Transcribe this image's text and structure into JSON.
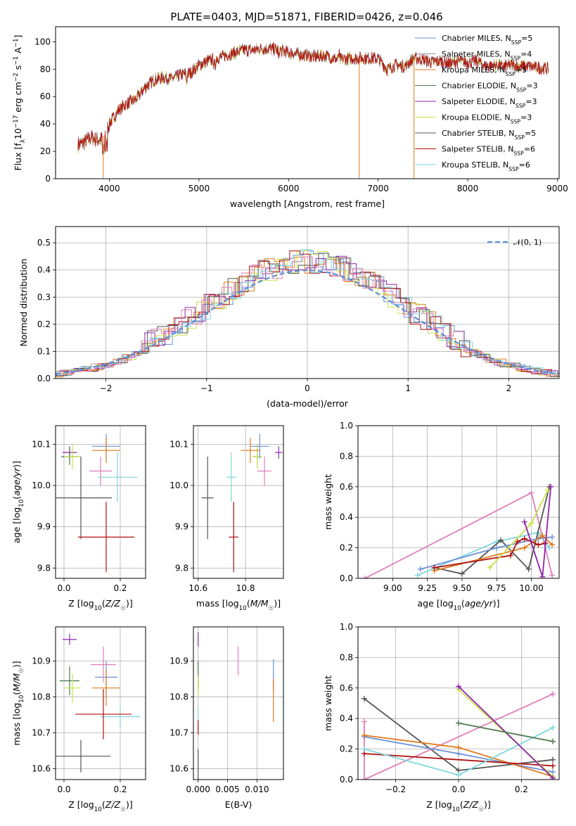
{
  "figure_title": "PLATE=0403, MJD=51871, FIBERID=0426, z=0.046",
  "colors": {
    "chabrier_miles": "#6b8fd6",
    "salpeter_miles": "#9d9d9d",
    "kroupa_miles": "#e07b1c",
    "chabrier_elodie": "#4d7a4d",
    "salpeter_elodie": "#8e24aa",
    "kroupa_elodie": "#c9e04a",
    "chabrier_stelib": "#555555",
    "salpeter_stelib": "#b01010",
    "kroupa_stelib": "#7fd6dc",
    "gauss": "#5b8fd6",
    "pink": "#e07fb8"
  },
  "chart_data": [
    {
      "id": "spectrum",
      "type": "line",
      "xlabel": "wavelength [Angstrom, rest frame]",
      "ylabel": "Flux [f_λ 10^-17 erg cm^-2 s^-1 A^-1]",
      "xlim": [
        3400,
        9020
      ],
      "ylim": [
        0,
        111
      ],
      "xticks": [
        4000,
        5000,
        6000,
        7000,
        8000,
        9000
      ],
      "yticks": [
        0,
        20,
        40,
        60,
        80,
        100
      ],
      "legend_position": "top-right",
      "legend": [
        {
          "name": "Chabrier MILES, N",
          "sub": "SSP",
          "val": "=5",
          "color": "#6b8fd6"
        },
        {
          "name": "Salpeter MILES, N",
          "sub": "SSP",
          "val": "=4",
          "color": "#9d9d9d"
        },
        {
          "name": "Kroupa MILES, N",
          "sub": "SSP",
          "val": "=5",
          "color": "#e07b1c"
        },
        {
          "name": "Chabrier ELODIE, N",
          "sub": "SSP",
          "val": "=3",
          "color": "#4d7a4d"
        },
        {
          "name": "Salpeter ELODIE, N",
          "sub": "SSP",
          "val": "=3",
          "color": "#8e24aa"
        },
        {
          "name": "Kroupa ELODIE, N",
          "sub": "SSP",
          "val": "=3",
          "color": "#c9e04a"
        },
        {
          "name": "Chabrier STELIB, N",
          "sub": "SSP",
          "val": "=5",
          "color": "#555555"
        },
        {
          "name": "Salpeter STELIB, N",
          "sub": "SSP",
          "val": "=6",
          "color": "#b01010"
        },
        {
          "name": "Kroupa STELIB, N",
          "sub": "SSP",
          "val": "=6",
          "color": "#7fd6dc"
        }
      ],
      "continuum": [
        [
          3650,
          25
        ],
        [
          3700,
          26
        ],
        [
          3800,
          30
        ],
        [
          3900,
          28
        ],
        [
          3950,
          33
        ],
        [
          4000,
          40
        ],
        [
          4100,
          50
        ],
        [
          4200,
          55
        ],
        [
          4300,
          58
        ],
        [
          4400,
          67
        ],
        [
          4500,
          72
        ],
        [
          4600,
          74
        ],
        [
          4700,
          73
        ],
        [
          4800,
          76
        ],
        [
          4900,
          77
        ],
        [
          5000,
          83
        ],
        [
          5100,
          86
        ],
        [
          5200,
          88
        ],
        [
          5300,
          90
        ],
        [
          5400,
          92
        ],
        [
          5500,
          94
        ],
        [
          5600,
          94
        ],
        [
          5700,
          95
        ],
        [
          5800,
          95
        ],
        [
          5900,
          94
        ],
        [
          6000,
          92
        ],
        [
          6100,
          91
        ],
        [
          6200,
          90
        ],
        [
          6300,
          89
        ],
        [
          6400,
          90
        ],
        [
          6500,
          88
        ],
        [
          6600,
          87
        ],
        [
          6700,
          88
        ],
        [
          6800,
          88
        ],
        [
          6900,
          88
        ],
        [
          7000,
          88
        ],
        [
          7100,
          80
        ],
        [
          7200,
          83
        ],
        [
          7300,
          82
        ],
        [
          7400,
          88
        ],
        [
          7500,
          87
        ],
        [
          7600,
          85
        ],
        [
          7700,
          86
        ],
        [
          7800,
          84
        ],
        [
          7900,
          86
        ],
        [
          8000,
          85
        ],
        [
          8100,
          86
        ],
        [
          8200,
          82
        ],
        [
          8300,
          83
        ],
        [
          8400,
          82
        ],
        [
          8500,
          83
        ],
        [
          8600,
          82
        ],
        [
          8700,
          82
        ],
        [
          8800,
          81
        ],
        [
          8900,
          80
        ]
      ],
      "spikes": [
        {
          "x": 3933,
          "y": 0,
          "color": "#e07b1c"
        },
        {
          "x": 6790,
          "y": 0,
          "color": "#e07b1c"
        },
        {
          "x": 7400,
          "y": 0,
          "color": "#e07b1c"
        }
      ]
    },
    {
      "id": "residual_hist",
      "type": "step",
      "xlabel": "(data-model)/error",
      "ylabel": "Normed distribution",
      "xlim": [
        -2.5,
        2.5
      ],
      "ylim": [
        0,
        0.56
      ],
      "xticks": [
        -2,
        -1,
        0,
        1,
        2
      ],
      "yticks": [
        0.0,
        0.1,
        0.2,
        0.3,
        0.4,
        0.5
      ],
      "legend": "𝒩(0, 1)",
      "legend_position": "top-right",
      "bin_width": 0.1
    },
    {
      "id": "age_vs_Z",
      "type": "errorbar",
      "xlabel": "Z [log10(Z/Z☉)]",
      "ylabel": "age  [log10(age/yr)]",
      "xlim": [
        -0.03,
        0.29
      ],
      "ylim": [
        9.775,
        10.145
      ],
      "xticks": [
        0.0,
        0.2
      ],
      "yticks": [
        9.8,
        9.9,
        10.0,
        10.1
      ],
      "points": [
        {
          "x": 0.02,
          "y": 10.08,
          "xerr": 0.025,
          "yerr": 0.015,
          "color": "#8e24aa"
        },
        {
          "x": 0.02,
          "y": 10.07,
          "xerr": 0.03,
          "yerr": 0.02,
          "color": "#4d7a4d"
        },
        {
          "x": 0.03,
          "y": 10.07,
          "xerr": 0.03,
          "yerr": 0.03,
          "color": "#c9e04a"
        },
        {
          "x": 0.15,
          "y": 10.095,
          "xerr": 0.05,
          "yerr": 0.03,
          "color": "#6b8fd6"
        },
        {
          "x": 0.15,
          "y": 10.085,
          "xerr": 0.05,
          "yerr": 0.03,
          "color": "#e07b1c"
        },
        {
          "x": 0.13,
          "y": 10.035,
          "xerr": 0.04,
          "yerr": 0.035,
          "color": "#e07fb8"
        },
        {
          "x": 0.19,
          "y": 10.02,
          "xerr": 0.07,
          "yerr": 0.06,
          "color": "#7fd6dc"
        },
        {
          "x": 0.06,
          "y": 9.97,
          "xerr": 0.11,
          "yerr": 0.1,
          "color": "#555555"
        },
        {
          "x": 0.15,
          "y": 9.875,
          "xerr": 0.1,
          "yerr": 0.085,
          "color": "#b01010"
        }
      ]
    },
    {
      "id": "age_vs_mass",
      "type": "errorbar",
      "xlabel": "mass [log10(M/M☉)]",
      "ylabel": "",
      "xlim": [
        10.58,
        10.96
      ],
      "ylim": [
        9.775,
        10.145
      ],
      "xticks": [
        10.6,
        10.8
      ],
      "yticks": [
        9.8,
        9.9,
        10.0,
        10.1
      ],
      "points": [
        {
          "x": 10.94,
          "y": 10.08,
          "xerr": 0.015,
          "yerr": 0.015,
          "color": "#8e24aa"
        },
        {
          "x": 10.85,
          "y": 10.07,
          "xerr": 0.02,
          "yerr": 0.02,
          "color": "#4d7a4d"
        },
        {
          "x": 10.85,
          "y": 10.07,
          "xerr": 0.02,
          "yerr": 0.03,
          "color": "#c9e04a"
        },
        {
          "x": 10.86,
          "y": 10.095,
          "xerr": 0.04,
          "yerr": 0.03,
          "color": "#6b8fd6"
        },
        {
          "x": 10.82,
          "y": 10.085,
          "xerr": 0.04,
          "yerr": 0.03,
          "color": "#e07b1c"
        },
        {
          "x": 10.88,
          "y": 10.035,
          "xerr": 0.03,
          "yerr": 0.035,
          "color": "#e07fb8"
        },
        {
          "x": 10.74,
          "y": 10.02,
          "xerr": 0.02,
          "yerr": 0.06,
          "color": "#7fd6dc"
        },
        {
          "x": 10.64,
          "y": 9.97,
          "xerr": 0.025,
          "yerr": 0.1,
          "color": "#555555"
        },
        {
          "x": 10.75,
          "y": 9.875,
          "xerr": 0.02,
          "yerr": 0.085,
          "color": "#b01010"
        }
      ]
    },
    {
      "id": "weight_vs_age",
      "type": "line",
      "xlabel": "age  [log10(age/yr)]",
      "ylabel": "mass weight",
      "xlim": [
        8.75,
        10.2
      ],
      "ylim": [
        0,
        1
      ],
      "xticks": [
        9.0,
        9.25,
        9.5,
        9.75,
        10.0
      ],
      "yticks": [
        0.0,
        0.2,
        0.4,
        0.6,
        0.8,
        1.0
      ],
      "series": [
        {
          "color": "#e07fb8",
          "points": [
            [
              8.8,
              0.0
            ],
            [
              10.0,
              0.56
            ],
            [
              10.15,
              0.02
            ]
          ]
        },
        {
          "color": "#7fd6dc",
          "points": [
            [
              9.18,
              0.02
            ],
            [
              9.75,
              0.24
            ],
            [
              10.05,
              0.3
            ],
            [
              10.13,
              0.2
            ]
          ]
        },
        {
          "color": "#555555",
          "points": [
            [
              9.3,
              0.07
            ],
            [
              9.5,
              0.03
            ],
            [
              9.78,
              0.25
            ],
            [
              9.98,
              0.06
            ],
            [
              10.13,
              0.6
            ]
          ]
        },
        {
          "color": "#6b8fd6",
          "points": [
            [
              9.2,
              0.06
            ],
            [
              9.75,
              0.2
            ],
            [
              10.05,
              0.26
            ],
            [
              10.15,
              0.27
            ]
          ]
        },
        {
          "color": "#e07b1c",
          "points": [
            [
              9.3,
              0.05
            ],
            [
              9.95,
              0.2
            ],
            [
              10.08,
              0.28
            ],
            [
              10.15,
              0.22
            ]
          ]
        },
        {
          "color": "#b01010",
          "points": [
            [
              9.3,
              0.07
            ],
            [
              9.85,
              0.15
            ],
            [
              9.9,
              0.24
            ],
            [
              9.95,
              0.26
            ],
            [
              10.05,
              0.22
            ],
            [
              10.1,
              0.23
            ]
          ]
        },
        {
          "color": "#c9e04a",
          "points": [
            [
              9.7,
              0.07
            ],
            [
              10.0,
              0.36
            ],
            [
              10.12,
              0.58
            ]
          ]
        },
        {
          "color": "#8e24aa",
          "points": [
            [
              9.95,
              0.37
            ],
            [
              10.08,
              0.01
            ],
            [
              10.14,
              0.6
            ]
          ]
        }
      ]
    },
    {
      "id": "mass_vs_Z",
      "type": "errorbar",
      "xlabel": "Z [log10(Z/Z☉)]",
      "ylabel": "mass [log10(M/M☉)]",
      "xlim": [
        -0.03,
        0.29
      ],
      "ylim": [
        10.57,
        10.995
      ],
      "xticks": [
        0.0,
        0.2
      ],
      "yticks": [
        10.6,
        10.7,
        10.8,
        10.9
      ],
      "points": [
        {
          "x": 0.02,
          "y": 10.96,
          "xerr": 0.025,
          "yerr": 0.015,
          "color": "#8e24aa"
        },
        {
          "x": 0.02,
          "y": 10.845,
          "xerr": 0.035,
          "yerr": 0.04,
          "color": "#4d7a4d"
        },
        {
          "x": 0.03,
          "y": 10.825,
          "xerr": 0.03,
          "yerr": 0.04,
          "color": "#c9e04a"
        },
        {
          "x": 0.15,
          "y": 10.855,
          "xerr": 0.04,
          "yerr": 0.045,
          "color": "#6b8fd6"
        },
        {
          "x": 0.15,
          "y": 10.825,
          "xerr": 0.05,
          "yerr": 0.05,
          "color": "#e07b1c"
        },
        {
          "x": 0.14,
          "y": 10.89,
          "xerr": 0.045,
          "yerr": 0.05,
          "color": "#e07fb8"
        },
        {
          "x": 0.2,
          "y": 10.745,
          "xerr": 0.07,
          "yerr": 0.03,
          "color": "#7fd6dc"
        },
        {
          "x": 0.06,
          "y": 10.635,
          "xerr": 0.105,
          "yerr": 0.045,
          "color": "#555555"
        },
        {
          "x": 0.14,
          "y": 10.752,
          "xerr": 0.1,
          "yerr": 0.07,
          "color": "#b01010"
        }
      ]
    },
    {
      "id": "mass_vs_ebv",
      "type": "errorbar",
      "xlabel": "E(B-V)",
      "ylabel": "",
      "xlim": [
        -0.0008,
        0.0145
      ],
      "ylim": [
        10.57,
        10.995
      ],
      "xticks": [
        0.0,
        0.005,
        0.01
      ],
      "xtick_labels": [
        "0.000",
        "0.005",
        "0.010"
      ],
      "yticks": [
        10.6,
        10.7,
        10.8,
        10.9
      ],
      "points": [
        {
          "x": 0.0,
          "y": 10.96,
          "xerr": 0,
          "yerr": 0.02,
          "color": "#8e24aa"
        },
        {
          "x": 0.0,
          "y": 10.86,
          "xerr": 0,
          "yerr": 0.04,
          "color": "#4d7a4d"
        },
        {
          "x": 0.0,
          "y": 10.83,
          "xerr": 0,
          "yerr": 0.03,
          "color": "#c9e04a"
        },
        {
          "x": 0.0,
          "y": 10.74,
          "xerr": 0,
          "yerr": 0.03,
          "color": "#7fd6dc"
        },
        {
          "x": 0.0,
          "y": 10.715,
          "xerr": 0,
          "yerr": 0.02,
          "color": "#b01010"
        },
        {
          "x": 0.0,
          "y": 10.61,
          "xerr": 0,
          "yerr": 0.045,
          "color": "#555555"
        },
        {
          "x": 0.0068,
          "y": 10.9,
          "xerr": 0,
          "yerr": 0.04,
          "color": "#e07fb8"
        },
        {
          "x": 0.0128,
          "y": 10.86,
          "xerr": 0,
          "yerr": 0.045,
          "color": "#6b8fd6"
        },
        {
          "x": 0.0128,
          "y": 10.79,
          "xerr": 0,
          "yerr": 0.06,
          "color": "#e07b1c"
        }
      ]
    },
    {
      "id": "weight_vs_Z",
      "type": "line",
      "xlabel": "Z [log10(Z/Z☉)]",
      "ylabel": "mass weight",
      "xlim": [
        -0.32,
        0.32
      ],
      "ylim": [
        0,
        1
      ],
      "xticks": [
        -0.2,
        0.0,
        0.2
      ],
      "yticks": [
        0.0,
        0.2,
        0.4,
        0.6,
        0.8,
        1.0
      ],
      "series": [
        {
          "color": "#555555",
          "points": [
            [
              -0.3,
              0.53
            ],
            [
              0.0,
              0.06
            ],
            [
              0.3,
              0.13
            ]
          ]
        },
        {
          "color": "#e07fb8",
          "points": [
            [
              -0.3,
              0.38
            ],
            [
              -0.3,
              0.0
            ],
            [
              0.3,
              0.56
            ]
          ]
        },
        {
          "color": "#6b8fd6",
          "points": [
            [
              -0.3,
              0.28
            ],
            [
              0.0,
              0.17
            ],
            [
              0.3,
              0.05
            ]
          ]
        },
        {
          "color": "#e07b1c",
          "points": [
            [
              -0.3,
              0.29
            ],
            [
              0.0,
              0.21
            ],
            [
              0.3,
              0.02
            ]
          ]
        },
        {
          "color": "#b01010",
          "points": [
            [
              -0.3,
              0.17
            ],
            [
              0.3,
              0.09
            ]
          ]
        },
        {
          "color": "#7fd6dc",
          "points": [
            [
              -0.3,
              0.2
            ],
            [
              0.0,
              0.03
            ],
            [
              0.3,
              0.34
            ]
          ]
        },
        {
          "color": "#c9e04a",
          "points": [
            [
              0.0,
              0.59
            ],
            [
              0.3,
              0.02
            ]
          ]
        },
        {
          "color": "#8e24aa",
          "points": [
            [
              0.0,
              0.61
            ],
            [
              0.3,
              0.01
            ]
          ]
        },
        {
          "color": "#4d7a4d",
          "points": [
            [
              0.0,
              0.37
            ],
            [
              0.3,
              0.25
            ]
          ]
        }
      ]
    }
  ]
}
